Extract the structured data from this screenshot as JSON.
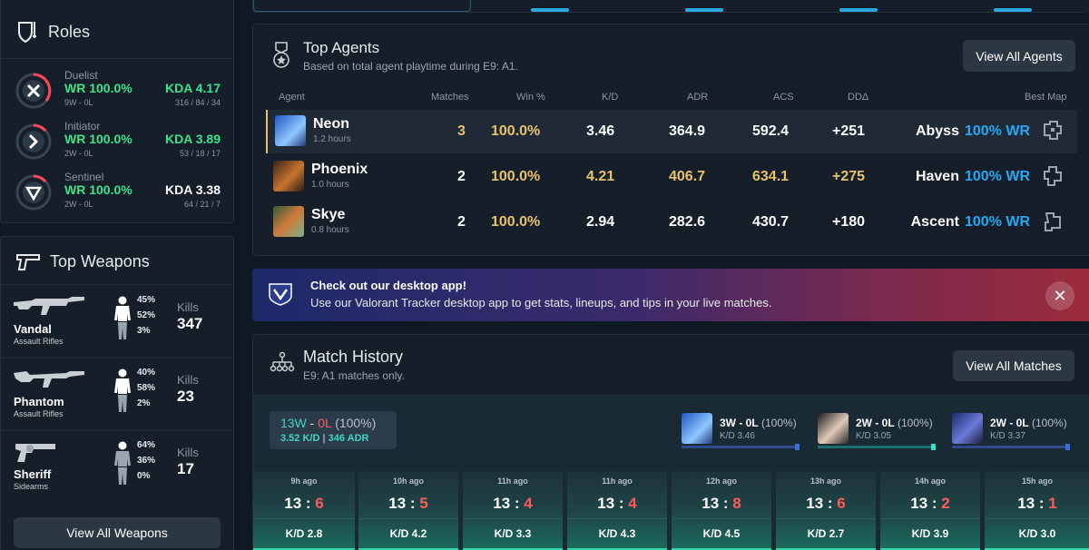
{
  "roles": {
    "title": "Roles",
    "items": [
      {
        "name": "Duelist",
        "wr": "WR 100.0%",
        "record": "9W - 0L",
        "kda": "KDA 4.17",
        "kda_detail": "316 / 84 / 34",
        "kda_color": "#3ee28b",
        "ring_fill": 0.4
      },
      {
        "name": "Initiator",
        "wr": "WR 100.0%",
        "record": "2W - 0L",
        "kda": "KDA 3.89",
        "kda_detail": "53 / 18 / 17",
        "kda_color": "#3ee28b",
        "ring_fill": 0.15
      },
      {
        "name": "Sentinel",
        "wr": "WR 100.0%",
        "record": "2W - 0L",
        "kda": "KDA 3.38",
        "kda_detail": "64 / 21 / 7",
        "kda_color": "#ffffff",
        "ring_fill": 0.15
      }
    ]
  },
  "weapons": {
    "title": "Top Weapons",
    "kills_label": "Kills",
    "view_all": "View All Weapons",
    "items": [
      {
        "name": "Vandal",
        "type": "Assault Rifles",
        "head": "45%",
        "body": "52%",
        "legs": "3%",
        "kills": "347"
      },
      {
        "name": "Phantom",
        "type": "Assault Rifles",
        "head": "40%",
        "body": "58%",
        "legs": "2%",
        "kills": "23"
      },
      {
        "name": "Sheriff",
        "type": "Sidearms",
        "head": "64%",
        "body": "36%",
        "legs": "0%",
        "kills": "17"
      }
    ]
  },
  "agents": {
    "title": "Top Agents",
    "subtitle": "Based on total agent playtime during E9: A1.",
    "view_all": "View All Agents",
    "headers": {
      "agent": "Agent",
      "matches": "Matches",
      "win": "Win %",
      "kd": "K/D",
      "adr": "ADR",
      "acs": "ACS",
      "dd": "DDΔ",
      "best_map": "Best Map"
    },
    "rows": [
      {
        "name": "Neon",
        "hours": "1.2 hours",
        "matches": "3",
        "win": "100.0%",
        "kd": "3.46",
        "adr": "364.9",
        "acs": "592.4",
        "dd": "+251",
        "map": "Abyss",
        "map_wr": "100% WR"
      },
      {
        "name": "Phoenix",
        "hours": "1.0 hours",
        "matches": "2",
        "win": "100.0%",
        "kd": "4.21",
        "adr": "406.7",
        "acs": "634.1",
        "dd": "+275",
        "map": "Haven",
        "map_wr": "100% WR"
      },
      {
        "name": "Skye",
        "hours": "0.8 hours",
        "matches": "2",
        "win": "100.0%",
        "kd": "2.94",
        "adr": "282.6",
        "acs": "430.7",
        "dd": "+180",
        "map": "Ascent",
        "map_wr": "100% WR"
      }
    ]
  },
  "banner": {
    "title": "Check out our desktop app!",
    "text": "Use our Valorant Tracker desktop app to get stats, lineups, and tips in your live matches.",
    "close": "✕"
  },
  "matches": {
    "title": "Match History",
    "subtitle": "E9: A1 matches only.",
    "view_all": "View All Matches",
    "summary": {
      "wins": "13W",
      "dash": " - ",
      "losses": "0L",
      "pct": " (100%)",
      "kd": "3.52 K/D",
      "sep": " | ",
      "adr": "346 ADR"
    },
    "chips": [
      {
        "wl": "3W - 0L",
        "pct": " (100%)",
        "kd": "K/D 3.46"
      },
      {
        "wl": "2W - 0L",
        "pct": " (100%)",
        "kd": "K/D 3.05"
      },
      {
        "wl": "2W - 0L",
        "pct": " (100%)",
        "kd": "K/D 3.37"
      }
    ],
    "games": [
      {
        "ago": "9h ago",
        "won": "13",
        "lost": "6",
        "kd": "K/D 2.8"
      },
      {
        "ago": "10h ago",
        "won": "13",
        "lost": "5",
        "kd": "K/D 4.2"
      },
      {
        "ago": "11h ago",
        "won": "13",
        "lost": "4",
        "kd": "K/D 3.3"
      },
      {
        "ago": "11h ago",
        "won": "13",
        "lost": "4",
        "kd": "K/D 4.3"
      },
      {
        "ago": "12h ago",
        "won": "13",
        "lost": "8",
        "kd": "K/D 4.5"
      },
      {
        "ago": "13h ago",
        "won": "13",
        "lost": "6",
        "kd": "K/D 2.7"
      },
      {
        "ago": "14h ago",
        "won": "13",
        "lost": "2",
        "kd": "K/D 3.9"
      },
      {
        "ago": "15h ago",
        "won": "13",
        "lost": "1",
        "kd": "K/D 3.0"
      }
    ]
  }
}
